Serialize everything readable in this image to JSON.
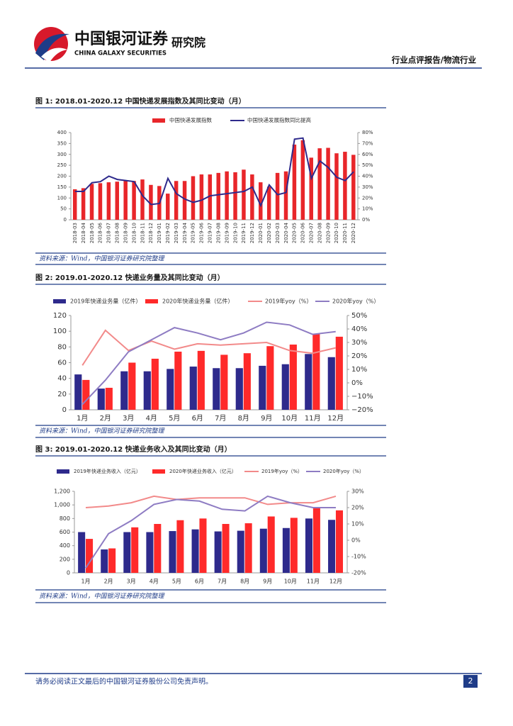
{
  "header": {
    "brand": "中国银河证券",
    "brand_en": "CHINA GALAXY SECURITIES",
    "unit": "研究院",
    "report": "行业点评报告/物流行业"
  },
  "chart_data": [
    {
      "type": "combo",
      "title": "图 1: 2018.01-2020.12 中国快递发展指数及其同比变动（月）",
      "source": "资料来源：Wind，中国银河证券研究院整理",
      "categories": [
        "2018-03",
        "2018-04",
        "2018-05",
        "2018-06",
        "2018-07",
        "2018-08",
        "2018-09",
        "2018-10",
        "2018-11",
        "2018-12",
        "2019-01",
        "2019-02",
        "2019-03",
        "2019-04",
        "2019-05",
        "2019-06",
        "2019-07",
        "2019-08",
        "2019-09",
        "2019-10",
        "2019-11",
        "2019-12",
        "2020-01",
        "2020-02",
        "2020-03",
        "2020-04",
        "2020-05",
        "2020-06",
        "2020-07",
        "2020-08",
        "2020-09",
        "2020-10",
        "2020-11",
        "2020-12"
      ],
      "series": [
        {
          "name": "中国快递发展指数",
          "kind": "bar",
          "color": "#e8262a",
          "values": [
            140,
            145,
            165,
            168,
            172,
            175,
            182,
            178,
            185,
            160,
            155,
            120,
            178,
            178,
            200,
            208,
            208,
            215,
            222,
            218,
            230,
            208,
            172,
            152,
            215,
            222,
            345,
            365,
            285,
            328,
            330,
            305,
            312,
            298
          ]
        },
        {
          "name": "中国快递发展指数同比提高",
          "kind": "line",
          "axis": "y2",
          "color": "#2e2a8c",
          "values": [
            26,
            26,
            34,
            35,
            40,
            37,
            36,
            35,
            22,
            14,
            15,
            38,
            24,
            19,
            16,
            18,
            22,
            23,
            24,
            25,
            26,
            30,
            13,
            32,
            23,
            25,
            74,
            75,
            38,
            54,
            48,
            39,
            36,
            44
          ]
        }
      ],
      "ylim": [
        0,
        400
      ],
      "yticks": [
        0,
        50,
        100,
        150,
        200,
        250,
        300,
        350,
        400
      ],
      "y2lim": [
        0,
        80
      ],
      "y2ticks": [
        {
          "value": 0,
          "label": "0%"
        },
        {
          "value": 10,
          "label": "10%"
        },
        {
          "value": 20,
          "label": "20%"
        },
        {
          "value": 30,
          "label": "30%"
        },
        {
          "value": 40,
          "label": "40%"
        },
        {
          "value": 50,
          "label": "50%"
        },
        {
          "value": 60,
          "label": "60%"
        },
        {
          "value": 70,
          "label": "70%"
        },
        {
          "value": 80,
          "label": "80%"
        }
      ],
      "grid": false,
      "legend": "top"
    },
    {
      "type": "combo",
      "title": "图 2: 2019.01-2020.12 快递业务量及其同比变动（月）",
      "source": "资料来源：Wind，中国银河证券研究院整理",
      "categories": [
        "1月",
        "2月",
        "3月",
        "4月",
        "5月",
        "6月",
        "7月",
        "8月",
        "9月",
        "10月",
        "11月",
        "12月"
      ],
      "series": [
        {
          "name": "2019年快递业务量（亿件）",
          "kind": "bar",
          "color": "#2e2a8c",
          "values": [
            45,
            27,
            49,
            49,
            52,
            55,
            53,
            53,
            56,
            58,
            71,
            67
          ]
        },
        {
          "name": "2020年快递业务量（亿件）",
          "kind": "bar",
          "color": "#ff2a2a",
          "values": [
            38,
            28,
            60,
            65,
            74,
            75,
            70,
            72,
            81,
            83,
            97,
            93
          ]
        },
        {
          "name": "2019年yoy（%）",
          "kind": "line",
          "axis": "y2",
          "color": "#f28a8a",
          "values": [
            13,
            39,
            24,
            31,
            25,
            29,
            28,
            29,
            30,
            24,
            22,
            26
          ]
        },
        {
          "name": "2020年yoy（%）",
          "kind": "line",
          "axis": "y2",
          "color": "#8e7cc3",
          "values": [
            -16,
            2,
            23,
            32,
            41,
            37,
            32,
            37,
            45,
            43,
            36,
            38
          ]
        }
      ],
      "ylim": [
        0,
        120
      ],
      "yticks": [
        0,
        20,
        40,
        60,
        80,
        100,
        120
      ],
      "y2lim": [
        -20,
        50
      ],
      "y2ticks": [
        {
          "value": -20,
          "label": "−20%"
        },
        {
          "value": -10,
          "label": "−10%"
        },
        {
          "value": 0,
          "label": "0%"
        },
        {
          "value": 10,
          "label": "10%"
        },
        {
          "value": 20,
          "label": "20%"
        },
        {
          "value": 30,
          "label": "30%"
        },
        {
          "value": 40,
          "label": "40%"
        },
        {
          "value": 50,
          "label": "50%"
        }
      ],
      "grid": false,
      "legend": "top"
    },
    {
      "type": "combo",
      "title": "图 3: 2019.01-2020.12 快递业务收入及其同比变动（月）",
      "source": "资料来源：Wind，中国银河证券研究院整理",
      "categories": [
        "1月",
        "2月",
        "3月",
        "4月",
        "5月",
        "6月",
        "7月",
        "8月",
        "9月",
        "10月",
        "11月",
        "12月"
      ],
      "series": [
        {
          "name": "2019年快递业务收入（亿元）",
          "kind": "bar",
          "color": "#2e2a8c",
          "values": [
            600,
            345,
            600,
            600,
            615,
            640,
            610,
            620,
            650,
            660,
            800,
            780
          ]
        },
        {
          "name": "2020年快递业务收入（亿元）",
          "kind": "bar",
          "color": "#ff2a2a",
          "values": [
            500,
            360,
            670,
            720,
            775,
            800,
            720,
            730,
            830,
            810,
            970,
            920
          ]
        },
        {
          "name": "2019年yoy（%）",
          "kind": "line",
          "axis": "y2",
          "color": "#f28a8a",
          "values": [
            20,
            21,
            23,
            27,
            25,
            26,
            26,
            26,
            22,
            23,
            23,
            27
          ]
        },
        {
          "name": "2020年yoy（%）",
          "kind": "line",
          "axis": "y2",
          "color": "#8e7cc3",
          "values": [
            -17,
            4,
            12,
            22,
            25,
            24,
            19,
            18,
            27,
            23,
            20,
            20
          ]
        }
      ],
      "ylim": [
        0,
        1200
      ],
      "yticks": [
        0,
        200,
        400,
        600,
        800,
        {
          "value": 1000,
          "label": "1,000"
        },
        {
          "value": 1200,
          "label": "1,200"
        }
      ],
      "y2lim": [
        -20,
        30
      ],
      "y2ticks": [
        {
          "value": -20,
          "label": "-20%"
        },
        {
          "value": -10,
          "label": "-10%"
        },
        {
          "value": 0,
          "label": "0%"
        },
        {
          "value": 10,
          "label": "10%"
        },
        {
          "value": 20,
          "label": "20%"
        },
        {
          "value": 30,
          "label": "30%"
        }
      ],
      "grid": false,
      "legend": "top"
    }
  ],
  "footer": {
    "disclaimer": "请务必阅读正文最后的中国银河证券股份公司免责声明。",
    "page": "2"
  }
}
